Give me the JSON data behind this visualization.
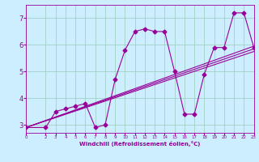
{
  "xlabel": "Windchill (Refroidissement éolien,°C)",
  "bg_color": "#cceeff",
  "line_color": "#990099",
  "grid_color": "#99ccbb",
  "xlim": [
    0,
    23
  ],
  "ylim": [
    2.7,
    7.5
  ],
  "xticks": [
    0,
    2,
    3,
    4,
    5,
    6,
    7,
    8,
    9,
    10,
    11,
    12,
    13,
    14,
    15,
    16,
    17,
    18,
    19,
    20,
    21,
    22,
    23
  ],
  "yticks": [
    3,
    4,
    5,
    6,
    7
  ],
  "line1_x": [
    0,
    2,
    3,
    4,
    5,
    6,
    7,
    8,
    9,
    10,
    11,
    12,
    13,
    14,
    15,
    16,
    17,
    18,
    19,
    20,
    21,
    22,
    23
  ],
  "line1_y": [
    2.9,
    2.9,
    3.5,
    3.6,
    3.7,
    3.8,
    2.9,
    3.0,
    4.7,
    5.8,
    6.5,
    6.6,
    6.5,
    6.5,
    5.0,
    3.4,
    3.4,
    4.9,
    5.9,
    5.9,
    7.2,
    7.2,
    5.9
  ],
  "line2_x": [
    0,
    23
  ],
  "line2_y": [
    2.9,
    5.95
  ],
  "line3_x": [
    0,
    23
  ],
  "line3_y": [
    2.9,
    5.85
  ],
  "line4_x": [
    0,
    23
  ],
  "line4_y": [
    2.9,
    5.75
  ],
  "marker": "D",
  "markersize": 2.5,
  "linewidth": 0.8
}
